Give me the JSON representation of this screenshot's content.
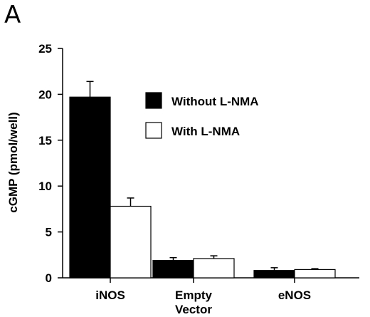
{
  "panel_label": "A",
  "chart_data": {
    "type": "bar",
    "categories": [
      [
        "iNOS"
      ],
      [
        "Empty",
        "Vector"
      ],
      [
        "eNOS"
      ]
    ],
    "series": [
      {
        "name": "Without L-NMA",
        "color": "#000000",
        "values": [
          19.7,
          1.9,
          0.8
        ],
        "errors": [
          1.7,
          0.3,
          0.3
        ]
      },
      {
        "name": "With L-NMA",
        "color": "#ffffff",
        "values": [
          7.8,
          2.1,
          0.9
        ],
        "errors": [
          0.9,
          0.3,
          0.1
        ]
      }
    ],
    "ylabel": "cGMP  (pmol/well)",
    "xlabel": "",
    "ylim": [
      0,
      25
    ],
    "yticks": [
      0,
      5,
      10,
      15,
      20,
      25
    ],
    "grid": false,
    "legend_position": "top-right"
  }
}
